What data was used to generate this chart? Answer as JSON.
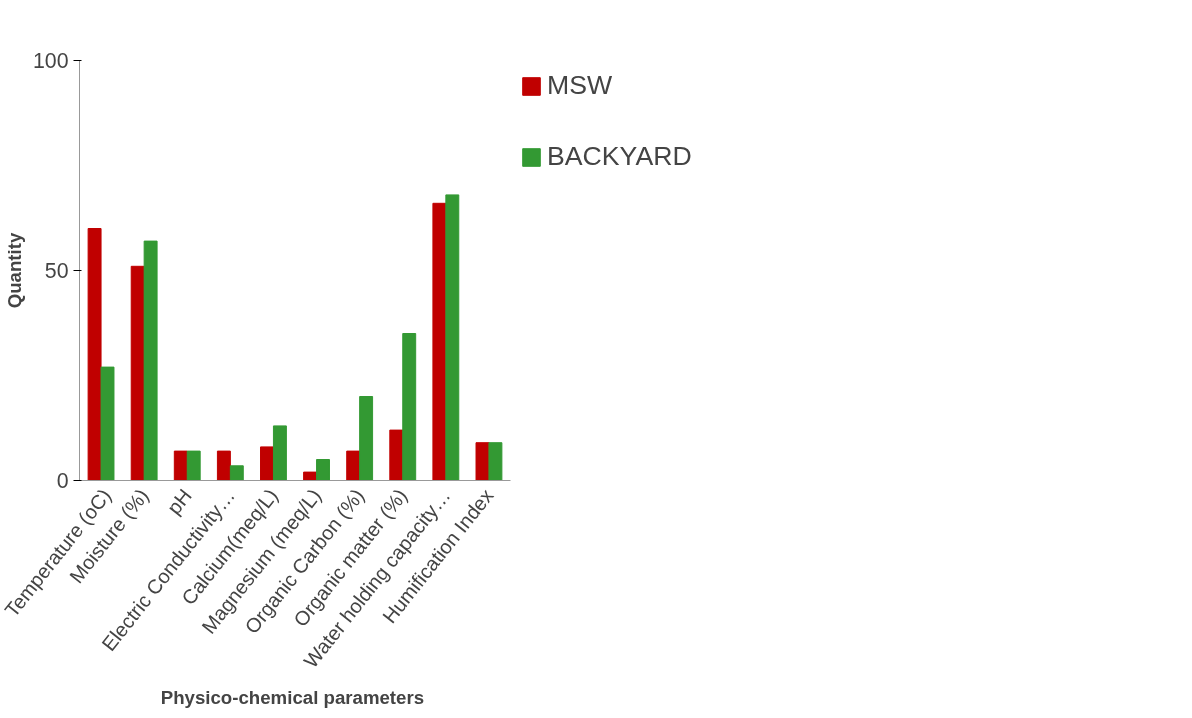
{
  "chart_data": {
    "type": "bar",
    "xlabel": "Physico-chemical  parameters",
    "ylabel": "Quantity",
    "categories": [
      "Temperature (oC)",
      "Moisture (%)",
      "pH",
      "Electric Conductivity…",
      "Calcium(meq/L)",
      "Magnesium (meq/L)",
      "Organic Carbon (%)",
      "Organic matter (%)",
      "Water holding capacity…",
      "Humification Index"
    ],
    "series": [
      {
        "name": "MSW",
        "color": "#c00000",
        "values": [
          60,
          51,
          7,
          7,
          8,
          2,
          7,
          12,
          66,
          9
        ]
      },
      {
        "name": "BACKYARD",
        "color": "#339933",
        "values": [
          27,
          57,
          7,
          3.5,
          13,
          5,
          20,
          35,
          68,
          9
        ]
      }
    ],
    "ylim": [
      0,
      100
    ],
    "yticks": [
      0,
      50,
      100
    ],
    "grid": false,
    "legend": "right"
  }
}
